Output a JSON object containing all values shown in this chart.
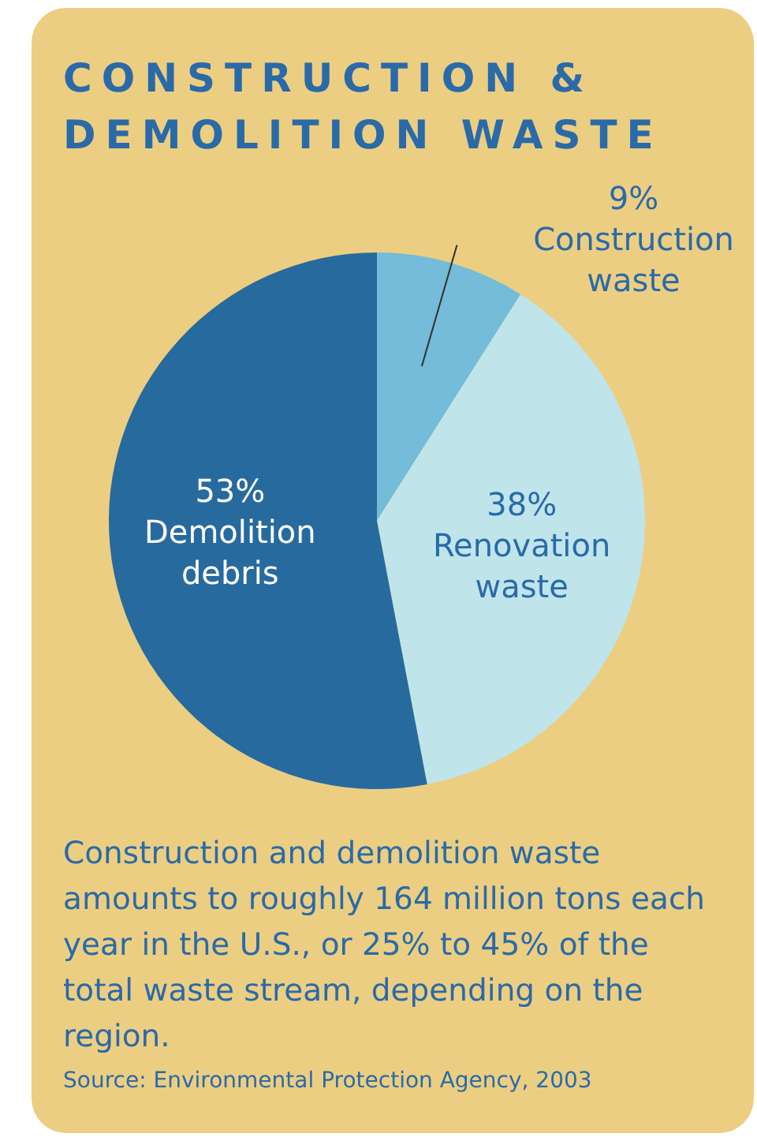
{
  "chart_data": {
    "type": "pie",
    "title": "CONSTRUCTION & DEMOLITION WASTE",
    "categories": [
      "Construction waste",
      "Renovation waste",
      "Demolition debris"
    ],
    "values": [
      9,
      38,
      53
    ],
    "colors": [
      "#74bcd9",
      "#bfe4ea",
      "#276a9e"
    ],
    "value_labels": [
      "9%",
      "38%",
      "53%"
    ],
    "legend": false,
    "annotations": [
      "Construction and demolition waste amounts to roughly 164 million tons each year in the U.S., or 25% to 45% of the total waste stream, depending on the region.",
      "Source: Environmental Protection Agency, 2003"
    ]
  }
}
